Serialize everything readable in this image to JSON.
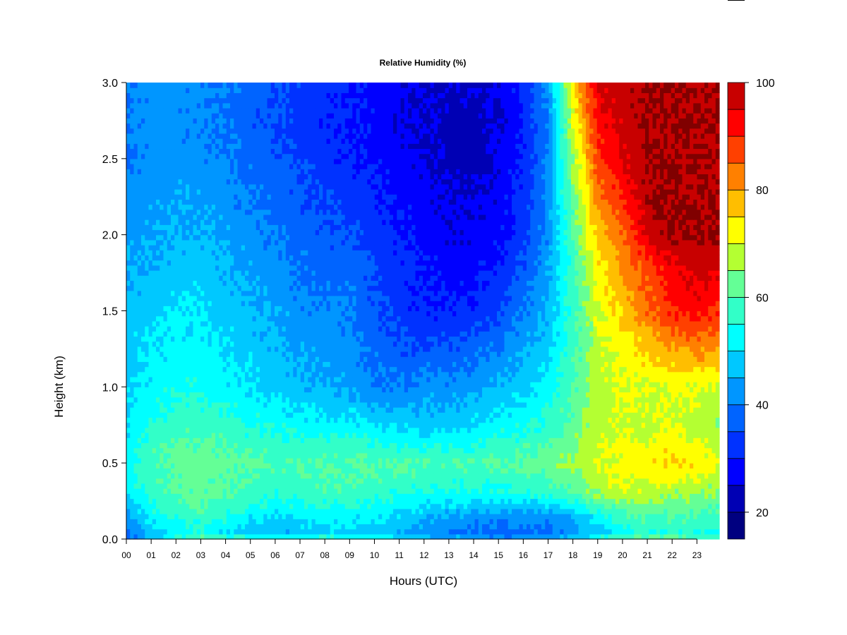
{
  "chart_data": {
    "type": "heatmap",
    "title": "Relative Humidity (%)",
    "xlabel": "Hours (UTC)",
    "ylabel": "Height (km)",
    "x_ticks": [
      "00",
      "01",
      "02",
      "03",
      "04",
      "05",
      "06",
      "07",
      "08",
      "09",
      "10",
      "11",
      "12",
      "13",
      "14",
      "15",
      "16",
      "17",
      "18",
      "19",
      "20",
      "21",
      "22",
      "23"
    ],
    "y_ticks": [
      "0.0",
      "0.5",
      "1.0",
      "1.5",
      "2.0",
      "2.5",
      "3.0"
    ],
    "xlim": [
      0,
      23.9
    ],
    "ylim": [
      0,
      3.0
    ],
    "colorbar": {
      "levels": [
        15,
        20,
        25,
        30,
        35,
        40,
        45,
        50,
        55,
        60,
        65,
        70,
        75,
        80,
        85,
        90,
        95,
        100
      ],
      "colors": [
        "#000080",
        "#0000b4",
        "#0000ff",
        "#0032ff",
        "#0064ff",
        "#0096ff",
        "#00c8ff",
        "#00ffff",
        "#32ffc8",
        "#64ff96",
        "#b4ff32",
        "#ffff00",
        "#ffbe00",
        "#ff8000",
        "#ff4000",
        "#ff0000",
        "#c80000",
        "#800000"
      ],
      "tick_labels": [
        "20",
        "40",
        "60",
        "80",
        "100"
      ],
      "tick_values": [
        20,
        40,
        60,
        80,
        100
      ]
    },
    "heights_km": [
      0.0,
      0.05,
      0.15,
      0.3,
      0.5,
      0.75,
      1.0,
      1.25,
      1.5,
      1.75,
      2.0,
      2.25,
      2.5,
      2.75,
      3.0
    ],
    "hours": [
      0,
      1,
      2,
      3,
      4,
      5,
      6,
      7,
      8,
      9,
      10,
      11,
      12,
      13,
      14,
      15,
      16,
      17,
      18,
      19,
      20,
      21,
      22,
      23,
      23.9
    ],
    "values": [
      [
        38,
        46,
        54,
        62,
        60,
        57,
        54,
        56,
        58,
        57,
        56,
        53,
        49,
        46,
        44,
        43,
        43,
        44,
        48,
        55,
        60,
        62,
        62,
        60,
        58
      ],
      [
        40,
        48,
        52,
        54,
        50,
        48,
        46,
        47,
        49,
        48,
        47,
        45,
        42,
        40,
        39,
        38,
        38,
        39,
        42,
        48,
        54,
        56,
        56,
        55,
        54
      ],
      [
        44,
        52,
        56,
        58,
        55,
        52,
        50,
        51,
        53,
        52,
        51,
        49,
        46,
        44,
        43,
        42,
        42,
        43,
        46,
        52,
        58,
        60,
        60,
        59,
        58
      ],
      [
        50,
        58,
        60,
        62,
        60,
        58,
        56,
        57,
        58,
        58,
        57,
        56,
        55,
        54,
        54,
        54,
        55,
        56,
        60,
        66,
        70,
        68,
        66,
        66,
        64
      ],
      [
        52,
        60,
        62,
        63,
        62,
        61,
        60,
        60,
        61,
        61,
        61,
        60,
        60,
        60,
        60,
        61,
        62,
        63,
        66,
        70,
        72,
        74,
        76,
        74,
        70
      ],
      [
        50,
        56,
        58,
        58,
        57,
        55,
        54,
        53,
        52,
        52,
        50,
        49,
        48,
        48,
        50,
        52,
        54,
        56,
        62,
        68,
        70,
        68,
        70,
        68,
        66
      ],
      [
        48,
        52,
        54,
        54,
        52,
        50,
        48,
        46,
        45,
        44,
        40,
        40,
        42,
        42,
        44,
        46,
        48,
        52,
        60,
        68,
        70,
        70,
        70,
        70,
        68
      ],
      [
        48,
        50,
        52,
        52,
        50,
        48,
        46,
        44,
        43,
        42,
        38,
        36,
        36,
        36,
        38,
        40,
        44,
        48,
        58,
        68,
        72,
        76,
        80,
        82,
        80
      ],
      [
        48,
        48,
        50,
        50,
        48,
        46,
        44,
        42,
        41,
        40,
        36,
        33,
        30,
        30,
        32,
        34,
        40,
        46,
        58,
        70,
        76,
        84,
        90,
        92,
        90
      ],
      [
        45,
        46,
        47,
        48,
        46,
        44,
        42,
        40,
        38,
        38,
        35,
        32,
        30,
        28,
        28,
        31,
        36,
        44,
        58,
        72,
        80,
        86,
        93,
        97,
        95
      ],
      [
        44,
        44,
        45,
        46,
        44,
        42,
        40,
        38,
        36,
        35,
        33,
        30,
        28,
        26,
        26,
        28,
        33,
        42,
        60,
        76,
        84,
        96,
        100,
        100,
        100
      ],
      [
        42,
        43,
        44,
        44,
        42,
        40,
        38,
        36,
        34,
        33,
        31,
        29,
        27,
        25,
        25,
        27,
        32,
        42,
        62,
        82,
        90,
        100,
        100,
        100,
        100
      ],
      [
        40,
        42,
        42,
        42,
        40,
        38,
        36,
        34,
        32,
        31,
        29,
        27,
        25,
        23,
        23,
        26,
        31,
        41,
        66,
        88,
        95,
        100,
        100,
        100,
        100
      ],
      [
        40,
        42,
        42,
        41,
        39,
        37,
        35,
        33,
        31,
        30,
        28,
        26,
        24,
        23,
        23,
        25,
        30,
        40,
        70,
        92,
        97,
        100,
        100,
        100,
        100
      ],
      [
        41,
        42,
        42,
        41,
        40,
        38,
        36,
        34,
        32,
        31,
        29,
        27,
        25,
        24,
        24,
        26,
        31,
        42,
        74,
        95,
        98,
        100,
        100,
        100,
        100
      ]
    ]
  }
}
